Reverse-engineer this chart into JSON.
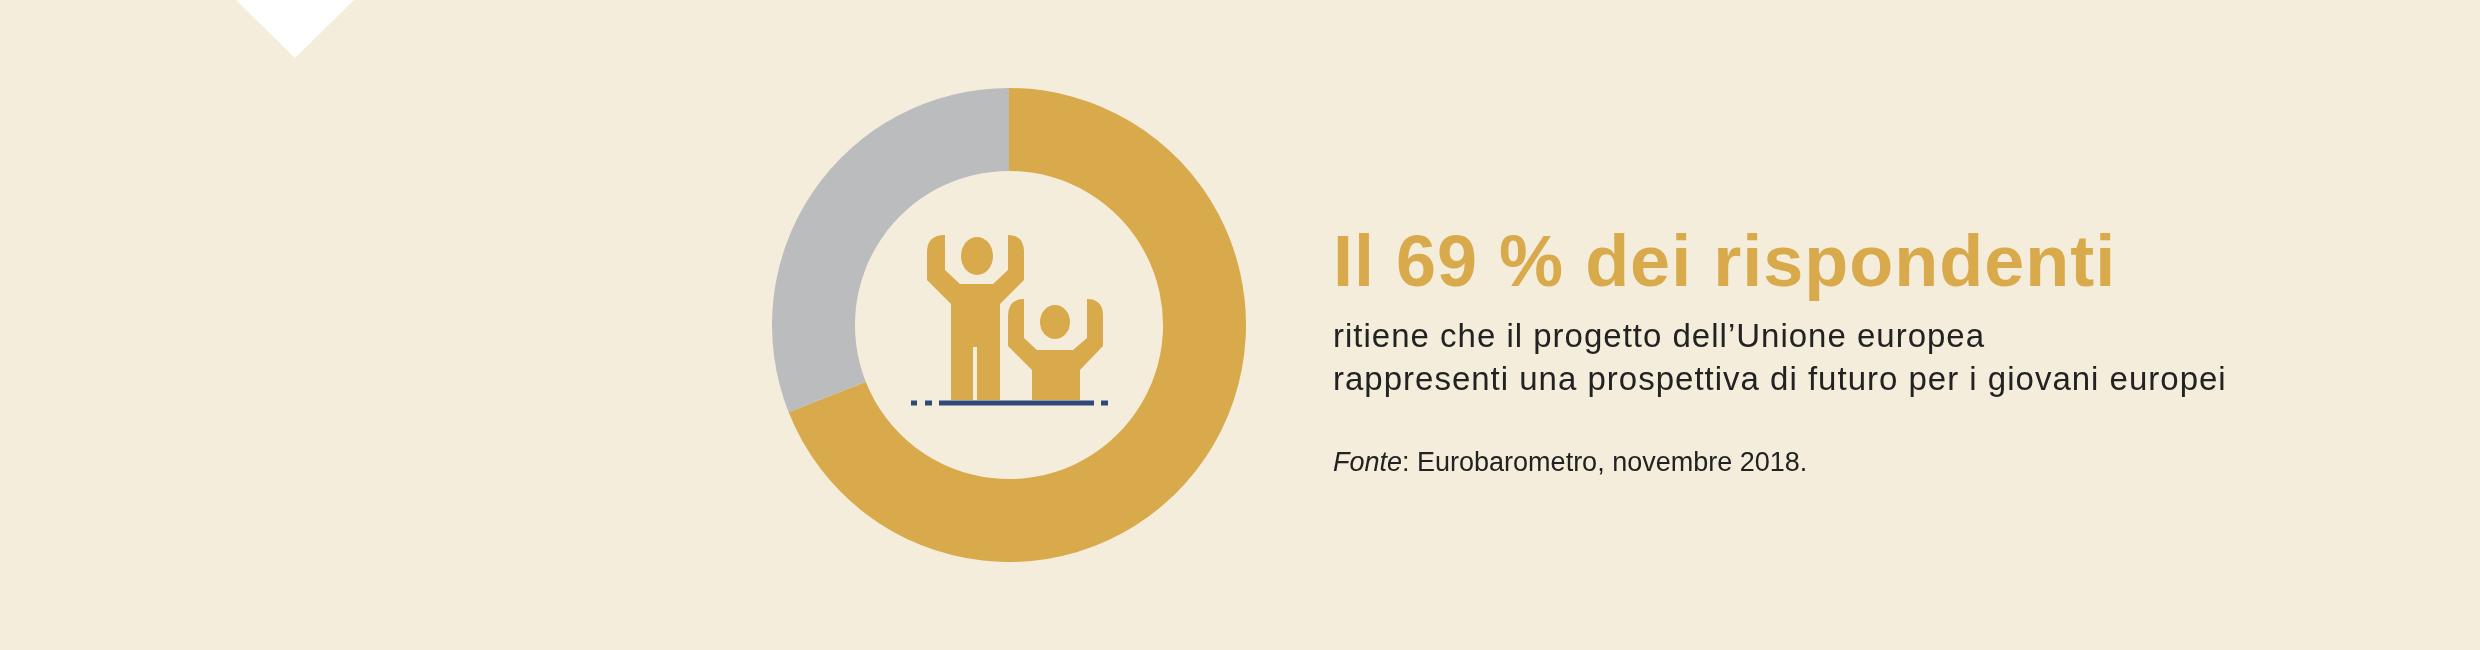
{
  "chart_data": {
    "type": "donut",
    "title": "Il 69 % dei rispondenti",
    "subtitle": "ritiene che il progetto dell’Unione europea\nrappresenti una prospettiva di futuro per i giovani europei",
    "categories": [
      null,
      null
    ],
    "values": [
      69,
      31
    ],
    "colors": [
      "#d8aa4c",
      "#babcbe"
    ],
    "annotations": [
      "Fonte: Eurobarometro, novembre 2018."
    ]
  }
}
